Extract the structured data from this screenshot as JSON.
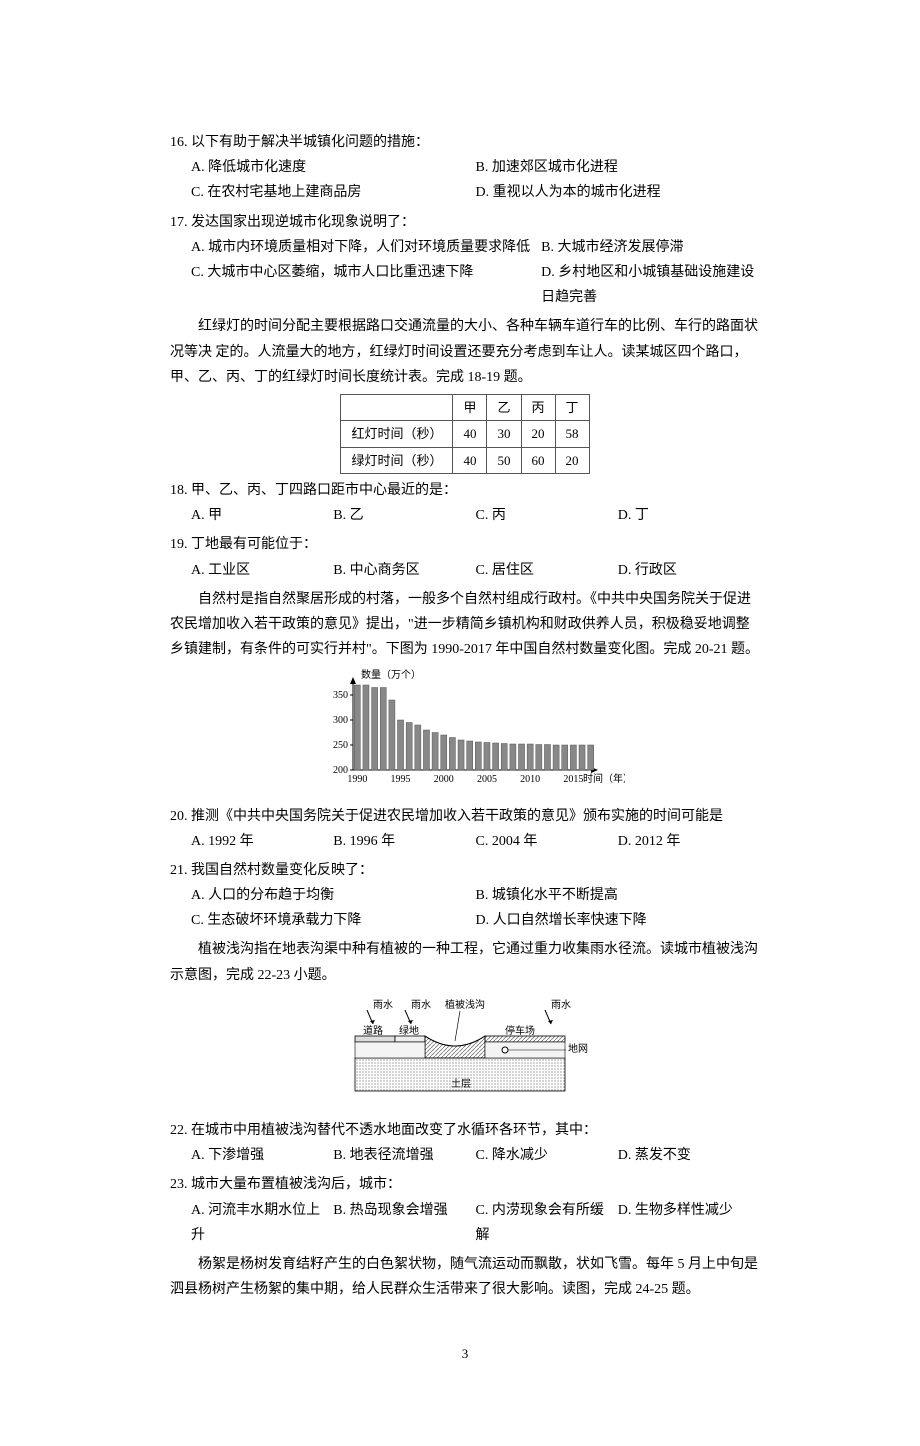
{
  "q16": {
    "stem": "16. 以下有助于解决半城镇化问题的措施：",
    "a": "A. 降低城市化速度",
    "b": "B. 加速郊区城市化进程",
    "c": "C. 在农村宅基地上建商品房",
    "d": "D. 重视以人为本的城市化进程"
  },
  "q17": {
    "stem": "17. 发达国家出现逆城市化现象说明了：",
    "a": "A. 城市内环境质量相对下降，人们对环境质量要求降低",
    "b": "B. 大城市经济发展停滞",
    "c": "C. 大城市中心区萎缩，城市人口比重迅速下降",
    "d": "D. 乡村地区和小城镇基础设施建设日趋完善"
  },
  "passage18": "红绿灯的时间分配主要根据路口交通流量的大小、各种车辆车道行车的比例、车行的路面状况等决 定的。人流量大的地方，红绿灯时间设置还要充分考虑到车让人。读某城区四个路口，甲、乙、丙、丁的红绿灯时间长度统计表。完成 18-19 题。",
  "table18": {
    "head": [
      "",
      "甲",
      "乙",
      "丙",
      "丁"
    ],
    "rows": [
      [
        "红灯时间（秒）",
        "40",
        "30",
        "20",
        "58"
      ],
      [
        "绿灯时间（秒）",
        "40",
        "50",
        "60",
        "20"
      ]
    ]
  },
  "q18": {
    "stem": "18. 甲、乙、丙、丁四路口距市中心最近的是：",
    "a": "A. 甲",
    "b": "B. 乙",
    "c": "C. 丙",
    "d": "D. 丁"
  },
  "q19": {
    "stem": "19. 丁地最有可能位于：",
    "a": "A. 工业区",
    "b": "B. 中心商务区",
    "c": "C. 居住区",
    "d": "D. 行政区"
  },
  "passage20": "自然村是指自然聚居形成的村落，一般多个自然村组成行政村。《中共中央国务院关于促进农民增加收入若干政策的意见》提出，\"进一步精简乡镇机构和财政供养人员，积极稳妥地调整乡镇建制，有条件的可实行并村\"。下图为 1990-2017 年中国自然村数量变化图。完成 20-21 题。",
  "chart20": {
    "title_y": "数量（万个）",
    "title_x": "时间（年）",
    "yticks": [
      200,
      250,
      300,
      350
    ],
    "xticks": [
      1990,
      1995,
      2000,
      2005,
      2010,
      2015
    ],
    "values": [
      370,
      370,
      365,
      365,
      340,
      300,
      295,
      290,
      280,
      275,
      270,
      265,
      260,
      258,
      256,
      255,
      254,
      253,
      252,
      252,
      252,
      251,
      251,
      250,
      250,
      250,
      250,
      250
    ],
    "bar_color": "#888",
    "bg_color": "#ffffff",
    "axis_color": "#000",
    "font_size": 10
  },
  "q20": {
    "stem": "20. 推测《中共中央国务院关于促进农民增加收入若干政策的意见》颁布实施的时间可能是",
    "a": "A. 1992 年",
    "b": "B. 1996 年",
    "c": "C. 2004 年",
    "d": "D. 2012 年"
  },
  "q21": {
    "stem": "21. 我国自然村数量变化反映了：",
    "a": "A. 人口的分布趋于均衡",
    "b": "B. 城镇化水平不断提高",
    "c": "C. 生态破坏环境承载力下降",
    "d": "D. 人口自然增长率快速下降"
  },
  "passage22": "植被浅沟指在地表沟渠中种有植被的一种工程，它通过重力收集雨水径流。读城市植被浅沟示意图，完成 22-23 小题。",
  "diagram22": {
    "labels": {
      "rain1": "雨水",
      "rain2": "雨水",
      "gutter": "植被浅沟",
      "rain3": "雨水",
      "road": "道路",
      "green": "绿地",
      "parking": "停车场",
      "pipe": "地网",
      "soil": "土层"
    },
    "colors": {
      "fill": "#b8b8b8",
      "hatch": "#999",
      "border": "#000"
    }
  },
  "q22": {
    "stem": "22. 在城市中用植被浅沟替代不透水地面改变了水循环各环节，其中：",
    "a": "A. 下渗增强",
    "b": "B. 地表径流增强",
    "c": "C. 降水减少",
    "d": "D. 蒸发不变"
  },
  "q23": {
    "stem": "23. 城市大量布置植被浅沟后，城市：",
    "a": "A. 河流丰水期水位上升",
    "b": "B. 热岛现象会增强",
    "c": "C. 内涝现象会有所缓解",
    "d": "D. 生物多样性减少"
  },
  "passage24": "杨絮是杨树发育结籽产生的白色絮状物，随气流运动而飘散，状如飞雪。每年 5 月上中旬是泗县杨树产生杨絮的集中期，给人民群众生活带来了很大影响。读图，完成 24-25 题。",
  "page_num": "3"
}
